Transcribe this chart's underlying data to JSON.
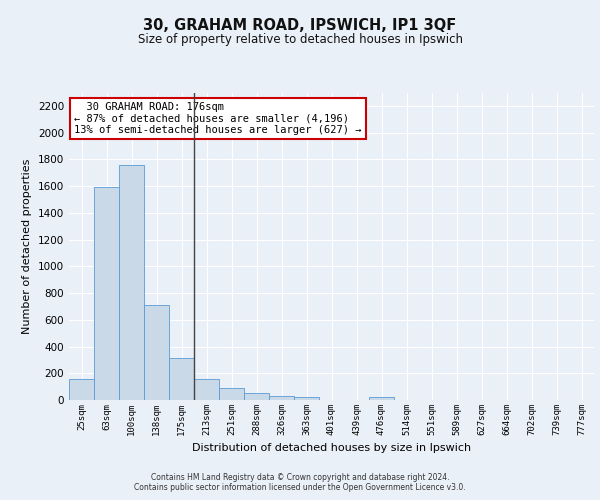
{
  "title": "30, GRAHAM ROAD, IPSWICH, IP1 3QF",
  "subtitle": "Size of property relative to detached houses in Ipswich",
  "xlabel": "Distribution of detached houses by size in Ipswich",
  "ylabel": "Number of detached properties",
  "bin_labels": [
    "25sqm",
    "63sqm",
    "100sqm",
    "138sqm",
    "175sqm",
    "213sqm",
    "251sqm",
    "288sqm",
    "326sqm",
    "363sqm",
    "401sqm",
    "439sqm",
    "476sqm",
    "514sqm",
    "551sqm",
    "589sqm",
    "627sqm",
    "664sqm",
    "702sqm",
    "739sqm",
    "777sqm"
  ],
  "bar_heights": [
    160,
    1590,
    1760,
    710,
    315,
    160,
    90,
    55,
    30,
    25,
    0,
    0,
    20,
    0,
    0,
    0,
    0,
    0,
    0,
    0,
    0
  ],
  "bar_color": "#c9d9e8",
  "bar_edge_color": "#5b9bd5",
  "vline_x": 4.5,
  "vline_color": "#444444",
  "annotation_text": "  30 GRAHAM ROAD: 176sqm\n← 87% of detached houses are smaller (4,196)\n13% of semi-detached houses are larger (627) →",
  "annotation_box_color": "#ffffff",
  "annotation_box_edge": "#cc0000",
  "ylim": [
    0,
    2300
  ],
  "yticks": [
    0,
    200,
    400,
    600,
    800,
    1000,
    1200,
    1400,
    1600,
    1800,
    2000,
    2200
  ],
  "bg_color": "#eaf0f8",
  "plot_bg_color": "#eaf0f8",
  "grid_color": "#ffffff",
  "footer_line1": "Contains HM Land Registry data © Crown copyright and database right 2024.",
  "footer_line2": "Contains public sector information licensed under the Open Government Licence v3.0."
}
